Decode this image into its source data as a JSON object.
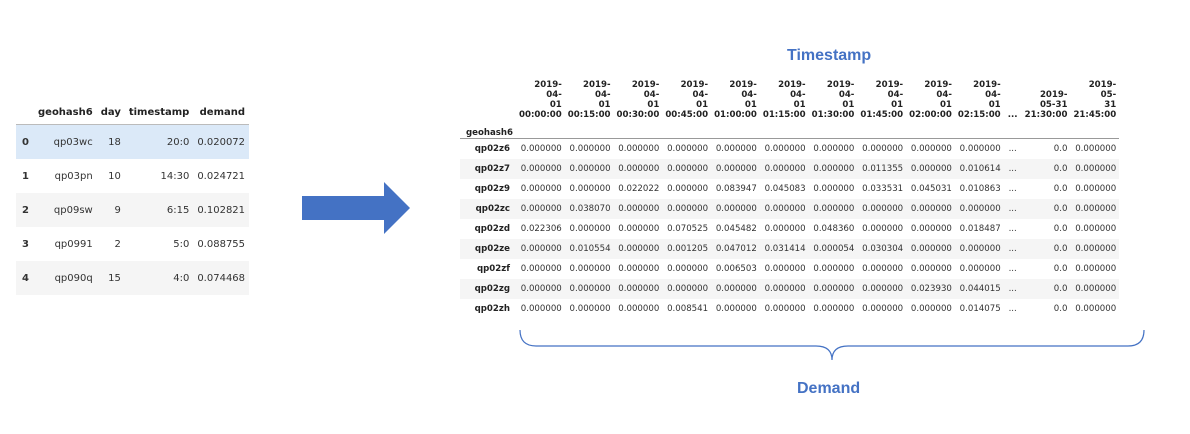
{
  "left_table": {
    "headers": [
      "",
      "geohash6",
      "day",
      "timestamp",
      "demand"
    ],
    "rows": [
      [
        "0",
        "qp03wc",
        "18",
        "20:0",
        "0.020072"
      ],
      [
        "1",
        "qp03pn",
        "10",
        "14:30",
        "0.024721"
      ],
      [
        "2",
        "qp09sw",
        "9",
        "6:15",
        "0.102821"
      ],
      [
        "3",
        "qp0991",
        "2",
        "5:0",
        "0.088755"
      ],
      [
        "4",
        "qp090q",
        "15",
        "4:0",
        "0.074468"
      ]
    ]
  },
  "arrow": {
    "color": "#4472c4"
  },
  "labels": {
    "timestamp": "Timestamp",
    "demand": "Demand"
  },
  "right_table": {
    "index_name": "geohash6",
    "columns": [
      [
        "2019-04-",
        "01",
        "00:00:00"
      ],
      [
        "2019-04-",
        "01",
        "00:15:00"
      ],
      [
        "2019-04-",
        "01",
        "00:30:00"
      ],
      [
        "2019-04-",
        "01",
        "00:45:00"
      ],
      [
        "2019-04-",
        "01",
        "01:00:00"
      ],
      [
        "2019-04-",
        "01",
        "01:15:00"
      ],
      [
        "2019-04-",
        "01",
        "01:30:00"
      ],
      [
        "2019-04-",
        "01",
        "01:45:00"
      ],
      [
        "2019-04-",
        "01",
        "02:00:00"
      ],
      [
        "2019-04-",
        "01",
        "02:15:00"
      ],
      [
        "...",
        "",
        ""
      ],
      [
        "2019-",
        "05-31",
        "21:30:00"
      ],
      [
        "2019-05-",
        "31",
        "21:45:00"
      ]
    ],
    "rows": [
      {
        "index": "qp02z6",
        "values": [
          "0.000000",
          "0.000000",
          "0.000000",
          "0.000000",
          "0.000000",
          "0.000000",
          "0.000000",
          "0.000000",
          "0.000000",
          "0.000000",
          "...",
          "0.0",
          "0.000000"
        ]
      },
      {
        "index": "qp02z7",
        "values": [
          "0.000000",
          "0.000000",
          "0.000000",
          "0.000000",
          "0.000000",
          "0.000000",
          "0.000000",
          "0.011355",
          "0.000000",
          "0.010614",
          "...",
          "0.0",
          "0.000000"
        ]
      },
      {
        "index": "qp02z9",
        "values": [
          "0.000000",
          "0.000000",
          "0.022022",
          "0.000000",
          "0.083947",
          "0.045083",
          "0.000000",
          "0.033531",
          "0.045031",
          "0.010863",
          "...",
          "0.0",
          "0.000000"
        ]
      },
      {
        "index": "qp02zc",
        "values": [
          "0.000000",
          "0.038070",
          "0.000000",
          "0.000000",
          "0.000000",
          "0.000000",
          "0.000000",
          "0.000000",
          "0.000000",
          "0.000000",
          "...",
          "0.0",
          "0.000000"
        ]
      },
      {
        "index": "qp02zd",
        "values": [
          "0.022306",
          "0.000000",
          "0.000000",
          "0.070525",
          "0.045482",
          "0.000000",
          "0.048360",
          "0.000000",
          "0.000000",
          "0.018487",
          "...",
          "0.0",
          "0.000000"
        ]
      },
      {
        "index": "qp02ze",
        "values": [
          "0.000000",
          "0.010554",
          "0.000000",
          "0.001205",
          "0.047012",
          "0.031414",
          "0.000054",
          "0.030304",
          "0.000000",
          "0.000000",
          "...",
          "0.0",
          "0.000000"
        ]
      },
      {
        "index": "qp02zf",
        "values": [
          "0.000000",
          "0.000000",
          "0.000000",
          "0.000000",
          "0.006503",
          "0.000000",
          "0.000000",
          "0.000000",
          "0.000000",
          "0.000000",
          "...",
          "0.0",
          "0.000000"
        ]
      },
      {
        "index": "qp02zg",
        "values": [
          "0.000000",
          "0.000000",
          "0.000000",
          "0.000000",
          "0.000000",
          "0.000000",
          "0.000000",
          "0.000000",
          "0.023930",
          "0.044015",
          "...",
          "0.0",
          "0.000000"
        ]
      },
      {
        "index": "qp02zh",
        "values": [
          "0.000000",
          "0.000000",
          "0.000000",
          "0.008541",
          "0.000000",
          "0.000000",
          "0.000000",
          "0.000000",
          "0.000000",
          "0.014075",
          "...",
          "0.0",
          "0.000000"
        ]
      }
    ]
  }
}
